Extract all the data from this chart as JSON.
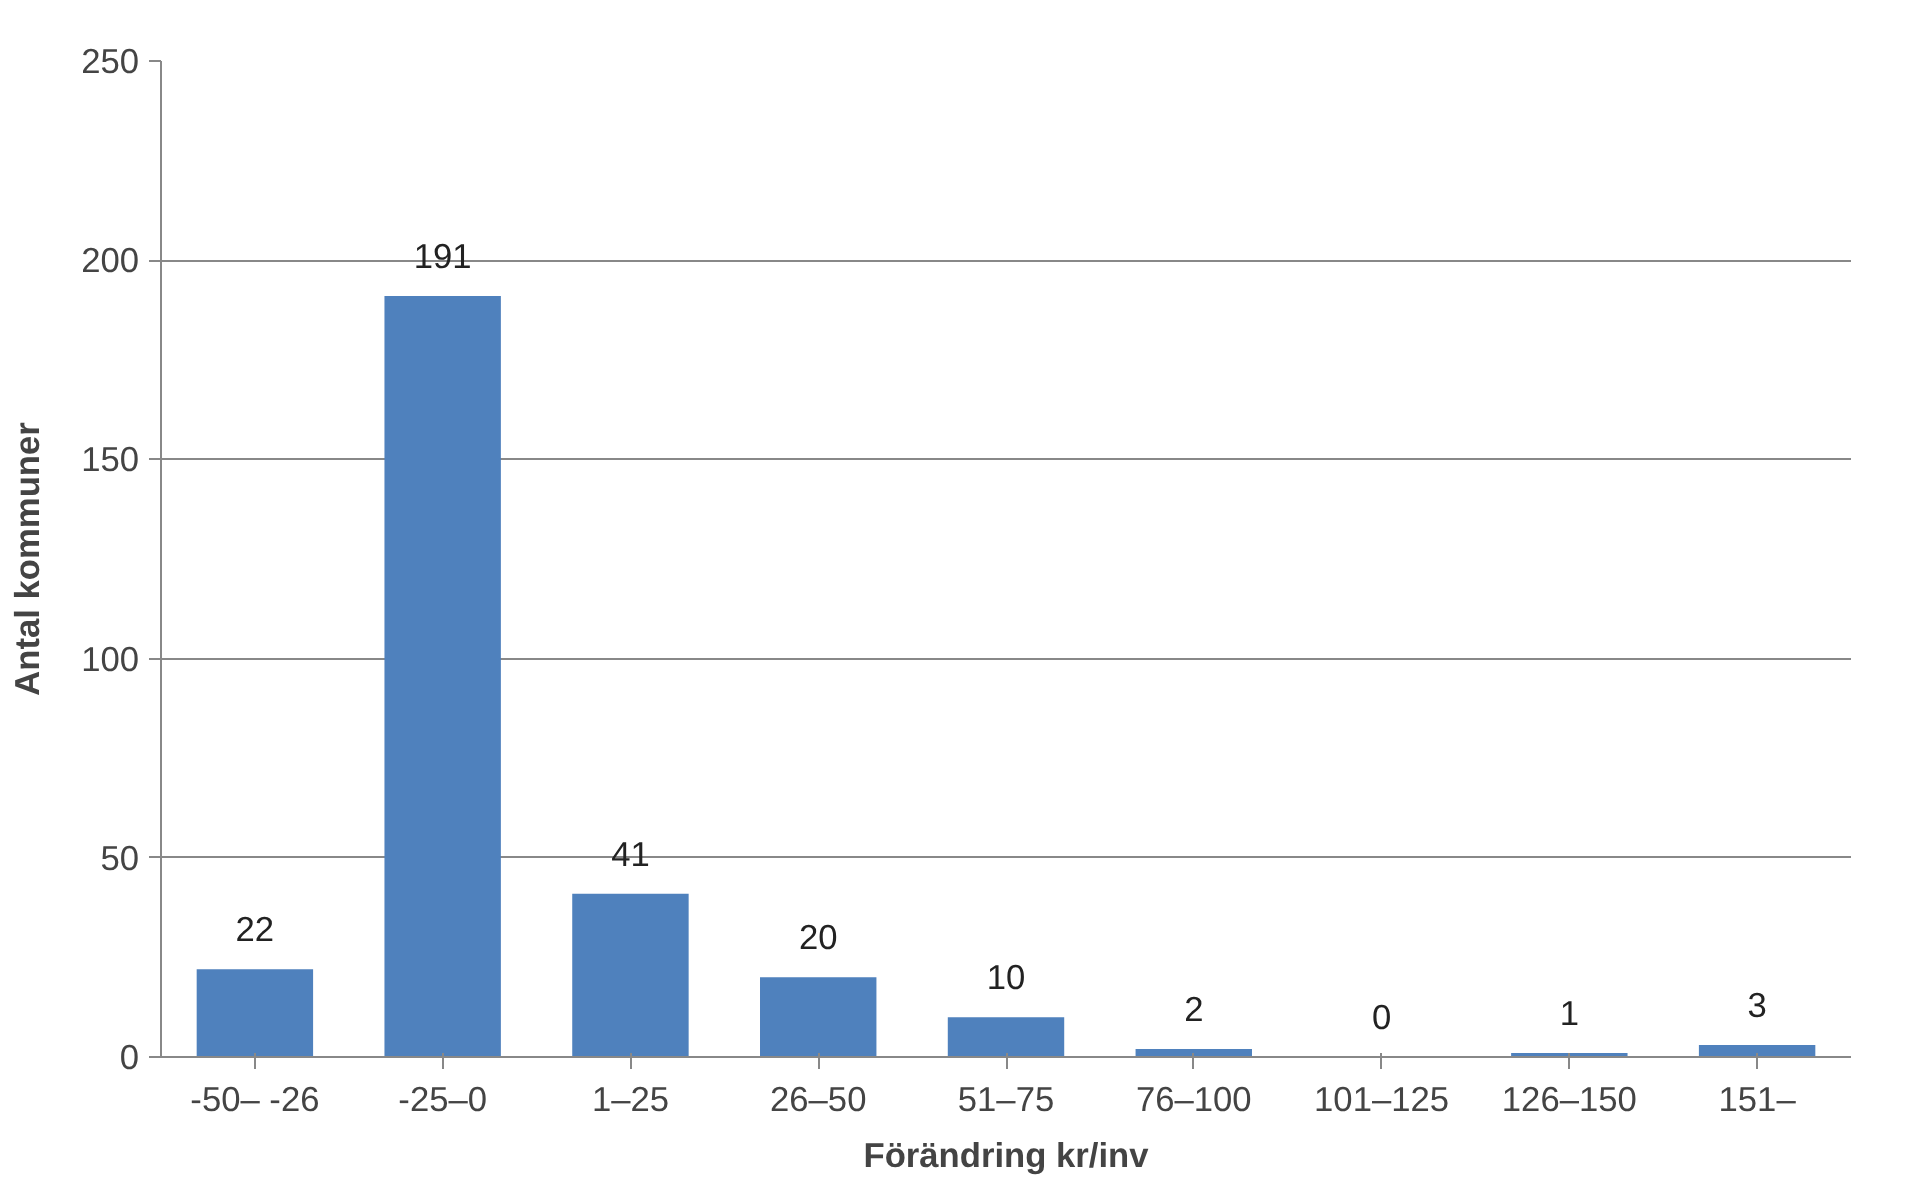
{
  "chart_data": {
    "type": "bar",
    "xlabel": "Förändring kr/inv",
    "ylabel": "Antal kommuner",
    "categories": [
      "-50– -26",
      "-25–0",
      "1–25",
      "26–50",
      "51–75",
      "76–100",
      "101–125",
      "126–150",
      "151–"
    ],
    "values": [
      22,
      191,
      41,
      20,
      10,
      2,
      0,
      1,
      3
    ],
    "color": "#4f81bd",
    "ylim": [
      0,
      250
    ],
    "yticks": [
      0,
      50,
      100,
      150,
      200,
      250
    ],
    "grid": "y",
    "data_labels": true
  }
}
